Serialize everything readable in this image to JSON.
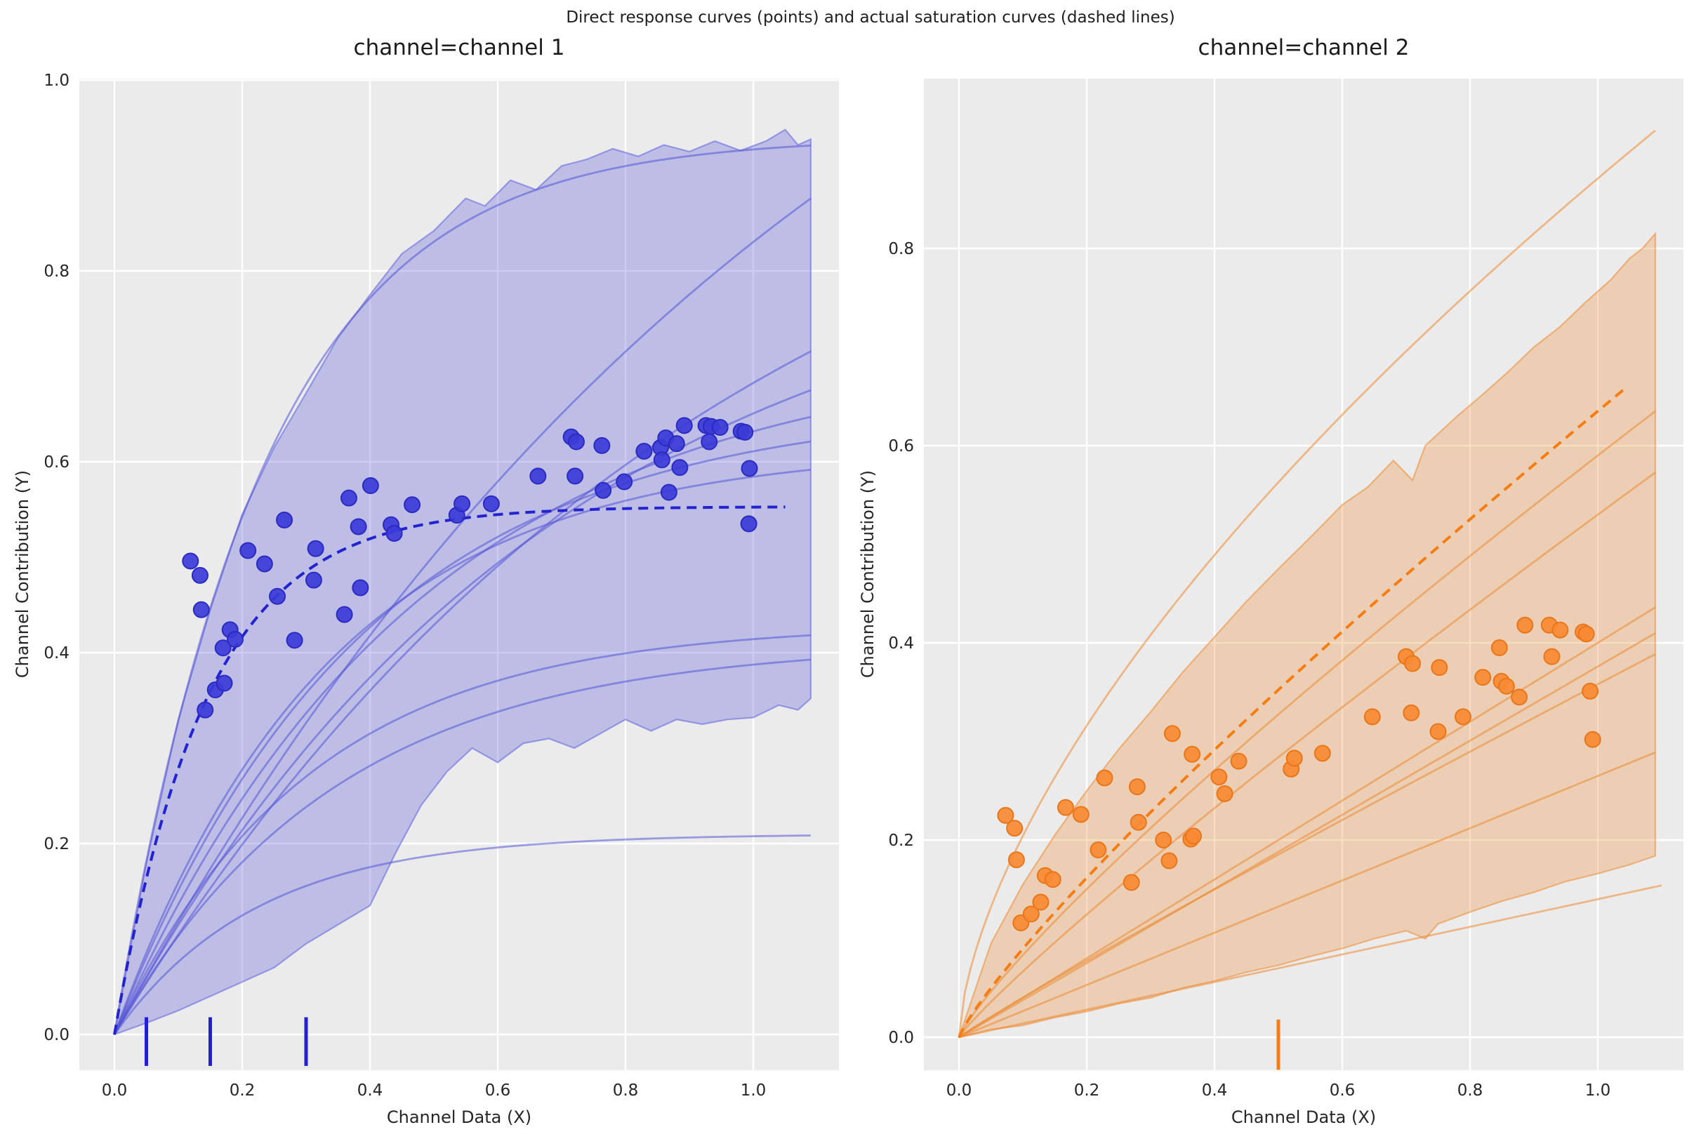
{
  "figure": {
    "suptitle": "Direct response curves (points) and actual saturation curves (dashed lines)",
    "background": "#ffffff",
    "axes_background": "#ebebeb",
    "grid_color": "#ffffff",
    "text_color": "#262626"
  },
  "chart_data": [
    {
      "type": "scatter",
      "title": "channel=channel 1",
      "xlabel": "Channel Data (X)",
      "ylabel": "Channel Contribution (Y)",
      "xticks": [
        0.0,
        0.2,
        0.4,
        0.6,
        0.8,
        1.0
      ],
      "yticks": [
        0.0,
        0.2,
        0.4,
        0.6,
        0.8,
        1.0
      ],
      "xlim": [
        -0.055,
        1.134
      ],
      "ylim": [
        -0.0375,
        1.0035
      ],
      "grid": true,
      "legend": "none",
      "colors": {
        "point": "#3b3bd8",
        "point_edge": "#2b2bc0",
        "dashed": "#2323cf",
        "line": "#5555d5",
        "band": "#6161dd",
        "rug": "#2222cc"
      },
      "scatter": [
        [
          0.119,
          0.496
        ],
        [
          0.134,
          0.481
        ],
        [
          0.136,
          0.445
        ],
        [
          0.142,
          0.34
        ],
        [
          0.158,
          0.361
        ],
        [
          0.17,
          0.405
        ],
        [
          0.172,
          0.368
        ],
        [
          0.181,
          0.424
        ],
        [
          0.189,
          0.414
        ],
        [
          0.209,
          0.507
        ],
        [
          0.235,
          0.493
        ],
        [
          0.255,
          0.459
        ],
        [
          0.266,
          0.539
        ],
        [
          0.282,
          0.413
        ],
        [
          0.312,
          0.476
        ],
        [
          0.315,
          0.509
        ],
        [
          0.36,
          0.44
        ],
        [
          0.367,
          0.562
        ],
        [
          0.382,
          0.532
        ],
        [
          0.385,
          0.468
        ],
        [
          0.401,
          0.575
        ],
        [
          0.433,
          0.534
        ],
        [
          0.438,
          0.525
        ],
        [
          0.466,
          0.555
        ],
        [
          0.536,
          0.544
        ],
        [
          0.544,
          0.556
        ],
        [
          0.59,
          0.556
        ],
        [
          0.663,
          0.585
        ],
        [
          0.715,
          0.626
        ],
        [
          0.723,
          0.621
        ],
        [
          0.721,
          0.585
        ],
        [
          0.763,
          0.617
        ],
        [
          0.765,
          0.57
        ],
        [
          0.798,
          0.579
        ],
        [
          0.829,
          0.611
        ],
        [
          0.855,
          0.615
        ],
        [
          0.857,
          0.602
        ],
        [
          0.863,
          0.625
        ],
        [
          0.868,
          0.568
        ],
        [
          0.88,
          0.619
        ],
        [
          0.885,
          0.594
        ],
        [
          0.892,
          0.638
        ],
        [
          0.926,
          0.638
        ],
        [
          0.934,
          0.637
        ],
        [
          0.948,
          0.636
        ],
        [
          0.931,
          0.621
        ],
        [
          0.981,
          0.632
        ],
        [
          0.987,
          0.631
        ],
        [
          0.994,
          0.593
        ],
        [
          0.993,
          0.535
        ]
      ],
      "dashed_curve": {
        "kind": "exp_saturation",
        "A": 0.553,
        "B": 7.0,
        "x_end": 1.05
      },
      "response_curves": [
        {
          "kind": "exp_saturation",
          "A": 0.94,
          "B": 4.3,
          "x_end": 1.09
        },
        {
          "kind": "exp_saturation",
          "A": 1.45,
          "B": 0.85,
          "x_end": 1.09
        },
        {
          "kind": "exp_saturation",
          "A": 1.05,
          "B": 1.05,
          "x_end": 1.09
        },
        {
          "kind": "exp_saturation",
          "A": 0.85,
          "B": 1.45,
          "x_end": 1.09
        },
        {
          "kind": "exp_saturation",
          "A": 0.72,
          "B": 2.1,
          "x_end": 1.09
        },
        {
          "kind": "exp_saturation",
          "A": 0.66,
          "B": 2.6,
          "x_end": 1.09
        },
        {
          "kind": "exp_saturation",
          "A": 0.615,
          "B": 3.0,
          "x_end": 1.09
        },
        {
          "kind": "exp_saturation",
          "A": 0.43,
          "B": 3.3,
          "x_end": 1.09
        },
        {
          "kind": "exp_saturation",
          "A": 0.41,
          "B": 2.9,
          "x_end": 1.09
        },
        {
          "kind": "exp_saturation",
          "A": 0.21,
          "B": 4.5,
          "x_end": 1.09
        }
      ],
      "band": {
        "upper": [
          [
            0,
            0
          ],
          [
            0.05,
            0.18
          ],
          [
            0.1,
            0.33
          ],
          [
            0.15,
            0.445
          ],
          [
            0.2,
            0.545
          ],
          [
            0.25,
            0.615
          ],
          [
            0.3,
            0.672
          ],
          [
            0.35,
            0.73
          ],
          [
            0.4,
            0.775
          ],
          [
            0.45,
            0.818
          ],
          [
            0.5,
            0.842
          ],
          [
            0.55,
            0.876
          ],
          [
            0.58,
            0.868
          ],
          [
            0.62,
            0.895
          ],
          [
            0.66,
            0.885
          ],
          [
            0.7,
            0.91
          ],
          [
            0.74,
            0.917
          ],
          [
            0.78,
            0.928
          ],
          [
            0.82,
            0.92
          ],
          [
            0.86,
            0.932
          ],
          [
            0.9,
            0.925
          ],
          [
            0.94,
            0.936
          ],
          [
            0.98,
            0.926
          ],
          [
            1.02,
            0.936
          ],
          [
            1.05,
            0.948
          ],
          [
            1.07,
            0.932
          ],
          [
            1.09,
            0.938
          ]
        ],
        "lower": [
          [
            0,
            0
          ],
          [
            0.05,
            0.012
          ],
          [
            0.1,
            0.025
          ],
          [
            0.15,
            0.04
          ],
          [
            0.2,
            0.055
          ],
          [
            0.25,
            0.07
          ],
          [
            0.3,
            0.095
          ],
          [
            0.35,
            0.115
          ],
          [
            0.4,
            0.135
          ],
          [
            0.44,
            0.19
          ],
          [
            0.48,
            0.24
          ],
          [
            0.52,
            0.275
          ],
          [
            0.56,
            0.3
          ],
          [
            0.6,
            0.285
          ],
          [
            0.64,
            0.305
          ],
          [
            0.68,
            0.31
          ],
          [
            0.72,
            0.3
          ],
          [
            0.76,
            0.315
          ],
          [
            0.8,
            0.33
          ],
          [
            0.84,
            0.318
          ],
          [
            0.88,
            0.33
          ],
          [
            0.92,
            0.325
          ],
          [
            0.96,
            0.33
          ],
          [
            1.0,
            0.332
          ],
          [
            1.04,
            0.345
          ],
          [
            1.07,
            0.34
          ],
          [
            1.09,
            0.352
          ]
        ]
      },
      "rug_x": [
        0.05,
        0.15,
        0.3
      ],
      "rug_span_y": [
        -0.033,
        0.018
      ]
    },
    {
      "type": "scatter",
      "title": "channel=channel 2",
      "xlabel": "Channel Data (X)",
      "ylabel": "Channel Contribution (Y)",
      "xticks": [
        0.0,
        0.2,
        0.4,
        0.6,
        0.8,
        1.0
      ],
      "yticks": [
        0.0,
        0.2,
        0.4,
        0.6,
        0.8
      ],
      "xlim": [
        -0.055,
        1.134
      ],
      "ylim": [
        -0.0335,
        0.972
      ],
      "grid": true,
      "legend": "none",
      "colors": {
        "point": "#f78a33",
        "point_edge": "#e8761a",
        "dashed": "#f57d14",
        "line": "#ec8a33",
        "band": "#ec8a33",
        "rug": "#f57d14"
      },
      "scatter": [
        [
          0.073,
          0.225
        ],
        [
          0.087,
          0.212
        ],
        [
          0.09,
          0.18
        ],
        [
          0.097,
          0.116
        ],
        [
          0.113,
          0.125
        ],
        [
          0.128,
          0.137
        ],
        [
          0.135,
          0.164
        ],
        [
          0.147,
          0.16
        ],
        [
          0.167,
          0.233
        ],
        [
          0.191,
          0.226
        ],
        [
          0.218,
          0.19
        ],
        [
          0.228,
          0.263
        ],
        [
          0.27,
          0.157
        ],
        [
          0.279,
          0.254
        ],
        [
          0.281,
          0.218
        ],
        [
          0.32,
          0.2
        ],
        [
          0.329,
          0.179
        ],
        [
          0.334,
          0.308
        ],
        [
          0.363,
          0.201
        ],
        [
          0.367,
          0.204
        ],
        [
          0.365,
          0.287
        ],
        [
          0.407,
          0.264
        ],
        [
          0.416,
          0.247
        ],
        [
          0.438,
          0.28
        ],
        [
          0.52,
          0.272
        ],
        [
          0.525,
          0.283
        ],
        [
          0.569,
          0.288
        ],
        [
          0.647,
          0.325
        ],
        [
          0.7,
          0.386
        ],
        [
          0.71,
          0.379
        ],
        [
          0.708,
          0.329
        ],
        [
          0.75,
          0.31
        ],
        [
          0.752,
          0.375
        ],
        [
          0.789,
          0.325
        ],
        [
          0.82,
          0.365
        ],
        [
          0.846,
          0.395
        ],
        [
          0.849,
          0.361
        ],
        [
          0.857,
          0.356
        ],
        [
          0.877,
          0.345
        ],
        [
          0.886,
          0.418
        ],
        [
          0.924,
          0.418
        ],
        [
          0.941,
          0.413
        ],
        [
          0.928,
          0.386
        ],
        [
          0.977,
          0.411
        ],
        [
          0.982,
          0.409
        ],
        [
          0.988,
          0.351
        ],
        [
          0.992,
          0.302
        ]
      ],
      "dashed_curve": {
        "kind": "power",
        "a": 0.635,
        "p": 0.85,
        "x_end": 1.04
      },
      "response_curves": [
        {
          "kind": "power",
          "a": 0.871,
          "p": 0.63,
          "x_end": 1.09
        },
        {
          "kind": "power",
          "a": 0.59,
          "p": 0.85,
          "x_end": 1.09
        },
        {
          "kind": "power",
          "a": 0.53,
          "p": 0.9,
          "x_end": 1.09
        },
        {
          "kind": "power",
          "a": 0.4,
          "p": 1.0,
          "x_end": 1.09
        },
        {
          "kind": "power",
          "a": 0.376,
          "p": 1.0,
          "x_end": 1.09
        },
        {
          "kind": "power",
          "a": 0.358,
          "p": 0.95,
          "x_end": 1.09
        },
        {
          "kind": "power",
          "a": 0.265,
          "p": 1.0,
          "x_end": 1.09
        },
        {
          "kind": "power",
          "a": 0.14,
          "p": 1.0,
          "x_end": 1.1
        }
      ],
      "band": {
        "upper": [
          [
            0,
            0
          ],
          [
            0.05,
            0.095
          ],
          [
            0.1,
            0.155
          ],
          [
            0.15,
            0.205
          ],
          [
            0.2,
            0.25
          ],
          [
            0.25,
            0.292
          ],
          [
            0.3,
            0.33
          ],
          [
            0.35,
            0.37
          ],
          [
            0.4,
            0.406
          ],
          [
            0.45,
            0.442
          ],
          [
            0.5,
            0.475
          ],
          [
            0.55,
            0.507
          ],
          [
            0.6,
            0.54
          ],
          [
            0.64,
            0.558
          ],
          [
            0.68,
            0.585
          ],
          [
            0.71,
            0.565
          ],
          [
            0.73,
            0.6
          ],
          [
            0.78,
            0.63
          ],
          [
            0.82,
            0.652
          ],
          [
            0.86,
            0.675
          ],
          [
            0.9,
            0.7
          ],
          [
            0.94,
            0.72
          ],
          [
            0.98,
            0.745
          ],
          [
            1.02,
            0.768
          ],
          [
            1.05,
            0.79
          ],
          [
            1.07,
            0.8
          ],
          [
            1.09,
            0.815
          ]
        ],
        "lower": [
          [
            0,
            0
          ],
          [
            0.05,
            0.008
          ],
          [
            0.1,
            0.012
          ],
          [
            0.15,
            0.02
          ],
          [
            0.2,
            0.026
          ],
          [
            0.25,
            0.034
          ],
          [
            0.3,
            0.04
          ],
          [
            0.35,
            0.05
          ],
          [
            0.4,
            0.057
          ],
          [
            0.45,
            0.066
          ],
          [
            0.5,
            0.073
          ],
          [
            0.55,
            0.082
          ],
          [
            0.6,
            0.09
          ],
          [
            0.65,
            0.1
          ],
          [
            0.7,
            0.108
          ],
          [
            0.73,
            0.1
          ],
          [
            0.75,
            0.115
          ],
          [
            0.8,
            0.127
          ],
          [
            0.85,
            0.138
          ],
          [
            0.9,
            0.147
          ],
          [
            0.95,
            0.158
          ],
          [
            1.0,
            0.166
          ],
          [
            1.05,
            0.175
          ],
          [
            1.09,
            0.184
          ]
        ]
      },
      "rug_x": [
        0.5
      ],
      "rug_span_y": [
        -0.033,
        0.018
      ]
    }
  ]
}
